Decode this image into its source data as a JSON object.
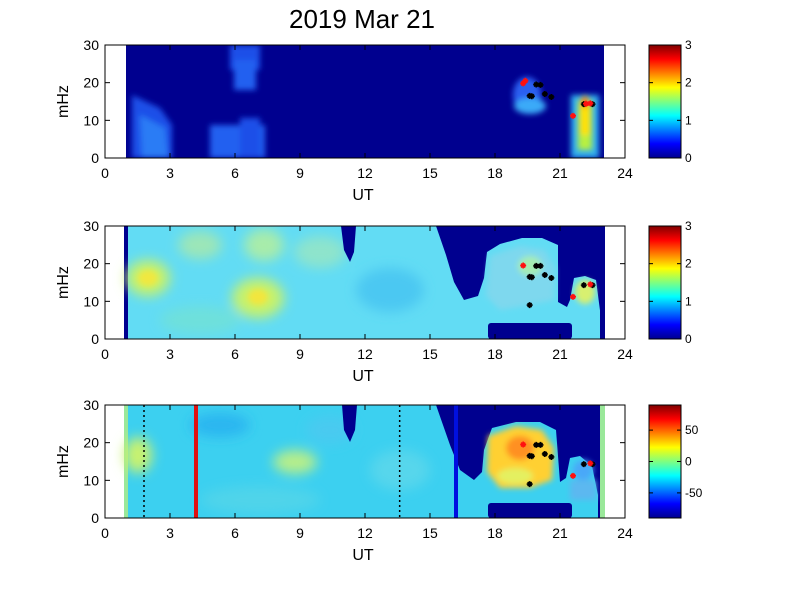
{
  "title": "2019 Mar 21",
  "colors": {
    "background": "#00008f",
    "axis": "#000000"
  },
  "chart_data": [
    {
      "type": "heatmap",
      "xlabel": "UT",
      "ylabel": "mHz",
      "xlim": [
        0,
        24
      ],
      "ylim": [
        0,
        30
      ],
      "xticks": [
        "0",
        "3",
        "6",
        "9",
        "12",
        "15",
        "18",
        "21",
        "24"
      ],
      "yticks": [
        "0",
        "10",
        "20",
        "30"
      ],
      "colorbar": {
        "range": [
          0,
          3
        ],
        "ticks": [
          "0",
          "1",
          "2",
          "3"
        ]
      },
      "data_coverage_ut": [
        1.0,
        23.0
      ],
      "red_marks": [
        [
          19.3,
          19.8
        ],
        [
          19.4,
          20.5
        ],
        [
          21.6,
          11.2
        ],
        [
          22.4,
          14.5
        ],
        [
          22.2,
          14.4
        ]
      ],
      "black_marks": [
        [
          19.6,
          16.5
        ],
        [
          19.9,
          19.5
        ],
        [
          20.1,
          19.4
        ],
        [
          20.3,
          17.0
        ],
        [
          20.6,
          16.2
        ],
        [
          19.7,
          16.4
        ],
        [
          22.1,
          14.3
        ],
        [
          22.5,
          14.3
        ]
      ]
    },
    {
      "type": "heatmap",
      "xlabel": "UT",
      "ylabel": "mHz",
      "xlim": [
        0,
        24
      ],
      "ylim": [
        0,
        30
      ],
      "xticks": [
        "0",
        "3",
        "6",
        "9",
        "12",
        "15",
        "18",
        "21",
        "24"
      ],
      "yticks": [
        "0",
        "10",
        "20",
        "30"
      ],
      "colorbar": {
        "range": [
          0,
          3
        ],
        "ticks": [
          "0",
          "1",
          "2",
          "3"
        ]
      },
      "data_coverage_ut": [
        1.0,
        23.0
      ],
      "red_marks": [
        [
          19.3,
          19.5
        ],
        [
          21.6,
          11.2
        ],
        [
          22.4,
          14.5
        ]
      ],
      "black_marks": [
        [
          19.6,
          16.5
        ],
        [
          19.9,
          19.4
        ],
        [
          20.1,
          19.4
        ],
        [
          20.3,
          17.0
        ],
        [
          20.6,
          16.2
        ],
        [
          19.7,
          16.4
        ],
        [
          19.6,
          9.0
        ],
        [
          22.1,
          14.3
        ],
        [
          22.5,
          14.3
        ]
      ]
    },
    {
      "type": "heatmap",
      "xlabel": "UT",
      "ylabel": "mHz",
      "xlim": [
        0,
        24
      ],
      "ylim": [
        0,
        30
      ],
      "xticks": [
        "0",
        "3",
        "6",
        "9",
        "12",
        "15",
        "18",
        "21",
        "24"
      ],
      "yticks": [
        "0",
        "10",
        "20",
        "30"
      ],
      "colorbar": {
        "range": [
          -90,
          90
        ],
        "ticks": [
          "50",
          "0",
          "-50"
        ]
      },
      "data_coverage_ut": [
        1.0,
        23.0
      ],
      "vertical_lines": [
        {
          "ut": 1.8,
          "style": "dotted",
          "color": "#000000"
        },
        {
          "ut": 4.2,
          "style": "solid",
          "color": "#e01010"
        },
        {
          "ut": 13.6,
          "style": "dotted",
          "color": "#000000"
        },
        {
          "ut": 16.2,
          "style": "solid",
          "color": "#0010e0"
        }
      ],
      "red_marks": [
        [
          19.3,
          19.5
        ],
        [
          21.6,
          11.2
        ],
        [
          22.4,
          14.5
        ]
      ],
      "black_marks": [
        [
          19.6,
          16.5
        ],
        [
          19.9,
          19.4
        ],
        [
          20.1,
          19.4
        ],
        [
          20.3,
          17.0
        ],
        [
          20.6,
          16.2
        ],
        [
          19.7,
          16.4
        ],
        [
          19.6,
          9.0
        ],
        [
          22.1,
          14.3
        ],
        [
          22.5,
          14.3
        ]
      ]
    }
  ]
}
